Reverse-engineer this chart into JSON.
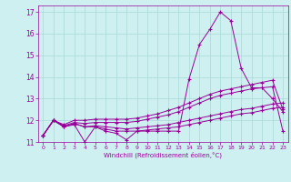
{
  "x": [
    0,
    1,
    2,
    3,
    4,
    5,
    6,
    7,
    8,
    9,
    10,
    11,
    12,
    13,
    14,
    15,
    16,
    17,
    18,
    19,
    20,
    21,
    22,
    23
  ],
  "line1": [
    11.3,
    12.0,
    11.7,
    11.8,
    11.0,
    11.7,
    11.5,
    11.4,
    11.1,
    11.5,
    11.5,
    11.5,
    11.5,
    11.5,
    13.9,
    15.5,
    16.2,
    17.0,
    16.6,
    14.4,
    13.5,
    13.5,
    13.0,
    12.4
  ],
  "line2": [
    11.3,
    12.0,
    11.7,
    11.85,
    11.7,
    11.7,
    11.6,
    11.5,
    11.5,
    11.5,
    11.55,
    11.6,
    11.65,
    11.7,
    11.8,
    11.9,
    12.0,
    12.1,
    12.2,
    12.3,
    12.35,
    12.45,
    12.55,
    12.6
  ],
  "line3": [
    11.3,
    12.0,
    11.7,
    11.85,
    11.7,
    11.75,
    11.7,
    11.65,
    11.6,
    11.65,
    11.7,
    11.75,
    11.8,
    11.9,
    12.0,
    12.1,
    12.2,
    12.3,
    12.4,
    12.5,
    12.55,
    12.65,
    12.75,
    12.8
  ],
  "line4": [
    11.3,
    12.0,
    11.75,
    11.9,
    11.85,
    11.9,
    11.9,
    11.9,
    11.9,
    11.95,
    12.05,
    12.15,
    12.25,
    12.4,
    12.6,
    12.8,
    13.0,
    13.15,
    13.25,
    13.35,
    13.45,
    13.5,
    13.55,
    11.5
  ],
  "line5": [
    11.3,
    12.0,
    11.8,
    12.0,
    12.0,
    12.05,
    12.05,
    12.05,
    12.05,
    12.1,
    12.2,
    12.3,
    12.45,
    12.6,
    12.8,
    13.0,
    13.2,
    13.35,
    13.45,
    13.55,
    13.65,
    13.75,
    13.85,
    12.5
  ],
  "color": "#990099",
  "bg_color": "#cff0f0",
  "grid_color": "#a8d8d8",
  "xlabel": "Windchill (Refroidissement éolien,°C)",
  "ylim": [
    11,
    17.3
  ],
  "xlim": [
    -0.5,
    23.5
  ],
  "yticks": [
    11,
    12,
    13,
    14,
    15,
    16,
    17
  ],
  "xticks": [
    0,
    1,
    2,
    3,
    4,
    5,
    6,
    7,
    8,
    9,
    10,
    11,
    12,
    13,
    14,
    15,
    16,
    17,
    18,
    19,
    20,
    21,
    22,
    23
  ]
}
